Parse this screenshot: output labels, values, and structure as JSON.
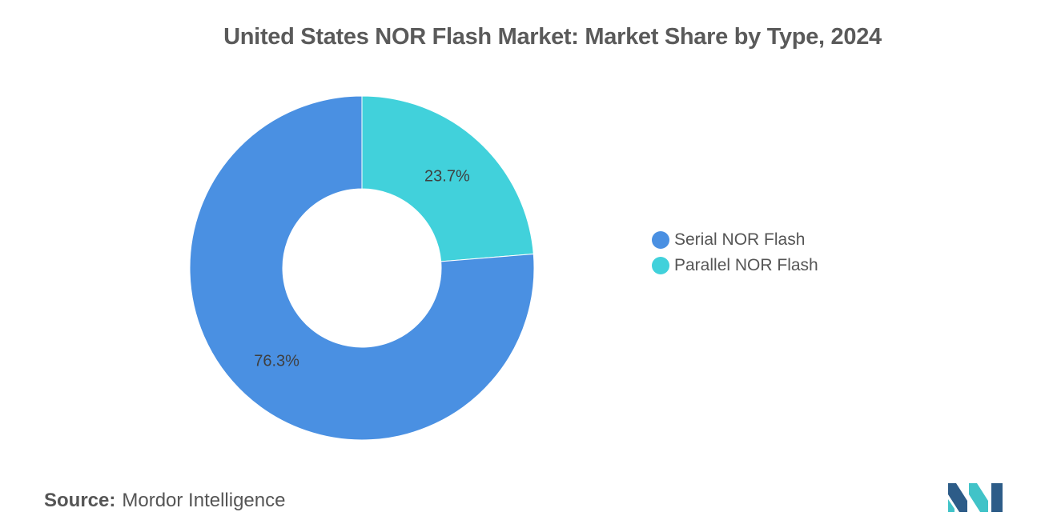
{
  "chart_data": {
    "type": "pie",
    "title": "United States NOR Flash Market: Market Share by Type, 2024",
    "categories": [
      "Serial NOR Flash",
      "Parallel NOR Flash"
    ],
    "values": [
      76.3,
      23.7
    ],
    "value_labels": [
      "76.3%",
      "23.7%"
    ],
    "colors": [
      "#4a90e2",
      "#41d1db"
    ],
    "donut": true,
    "legend_position": "right"
  },
  "legend": {
    "items": [
      {
        "label": "Serial NOR Flash",
        "color": "#4a90e2"
      },
      {
        "label": "Parallel NOR Flash",
        "color": "#41d1db"
      }
    ]
  },
  "source": {
    "key": "Source:",
    "value": "Mordor Intelligence"
  },
  "logo": {
    "icon": "mordor-intelligence-logo-icon",
    "colors": [
      "#2d5c88",
      "#41c3c8"
    ]
  }
}
